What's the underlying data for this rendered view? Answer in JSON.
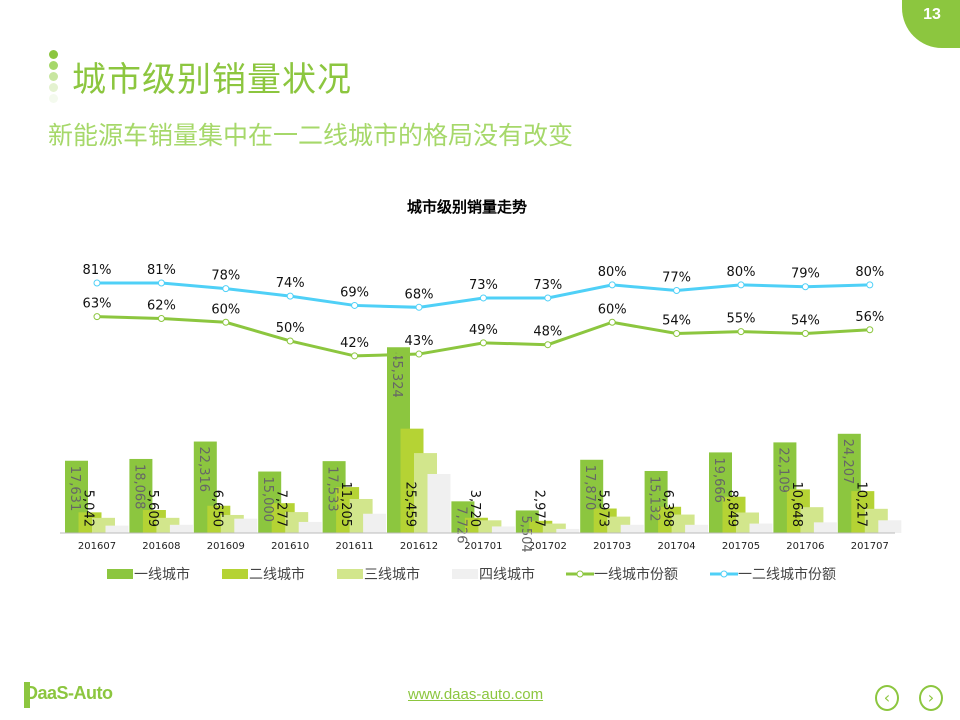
{
  "page_number": "13",
  "title": "城市级别销量状况",
  "subtitle": "新能源车销量集中在一二线城市的格局没有改变",
  "footer": {
    "url": "www.daas-auto.com",
    "logo": "DaaS-Auto",
    "prev_icon": "chevron-left-circle",
    "next_icon": "chevron-right-circle"
  },
  "colors": {
    "accent": "#8cc63f",
    "tier1": "#8cc63f",
    "tier2": "#b5d334",
    "tier3": "#d2e68c",
    "tier4": "#f0f0f0",
    "share1": "#8cc63f",
    "share12": "#4fd0f7"
  },
  "chart_data": {
    "type": "bar+line",
    "title": "城市级别销量走势",
    "categories": [
      "201607",
      "201608",
      "201609",
      "201610",
      "201611",
      "201612",
      "201701",
      "201702",
      "201703",
      "201704",
      "201705",
      "201706",
      "201707"
    ],
    "bar_series": [
      {
        "name": "一线城市",
        "values": [
          17631,
          18068,
          22316,
          15000,
          17533,
          45324,
          7726,
          5504,
          17870,
          15132,
          19666,
          22109,
          24207
        ],
        "labels": [
          "17,631",
          "18,068",
          "22,316",
          "15,000",
          "17,533",
          "45,324",
          "7,726",
          "5,504",
          "17,870",
          "15,132",
          "19,666",
          "22,109",
          "24,207"
        ]
      },
      {
        "name": "二线城市",
        "values": [
          5042,
          5609,
          6650,
          7277,
          11205,
          25459,
          3720,
          2977,
          5973,
          6398,
          8849,
          10648,
          10217
        ],
        "labels": [
          "5,042",
          "5,609",
          "6,650",
          "7,277",
          "11,205",
          "25,459",
          "3,720",
          "2,977",
          "5,973",
          "6,398",
          "8,849",
          "10,648",
          "10,217"
        ]
      },
      {
        "name": "三线城市",
        "values": [
          3700,
          3700,
          4400,
          5100,
          8300,
          19500,
          3100,
          2300,
          4000,
          4500,
          5000,
          6300,
          5900
        ]
      },
      {
        "name": "四线城市",
        "values": [
          1800,
          2000,
          3500,
          2700,
          4700,
          14400,
          1600,
          1000,
          2000,
          2000,
          2300,
          2600,
          3100
        ]
      }
    ],
    "line_series": [
      {
        "name": "一线城市份额",
        "values": [
          63,
          62,
          60,
          50,
          42,
          43,
          49,
          48,
          60,
          54,
          55,
          54,
          56
        ],
        "unit": "%"
      },
      {
        "name": "一二线城市份额",
        "values": [
          81,
          81,
          78,
          74,
          69,
          68,
          73,
          73,
          80,
          77,
          80,
          79,
          80
        ],
        "unit": "%"
      }
    ],
    "legend": "bottom",
    "grid": false
  }
}
